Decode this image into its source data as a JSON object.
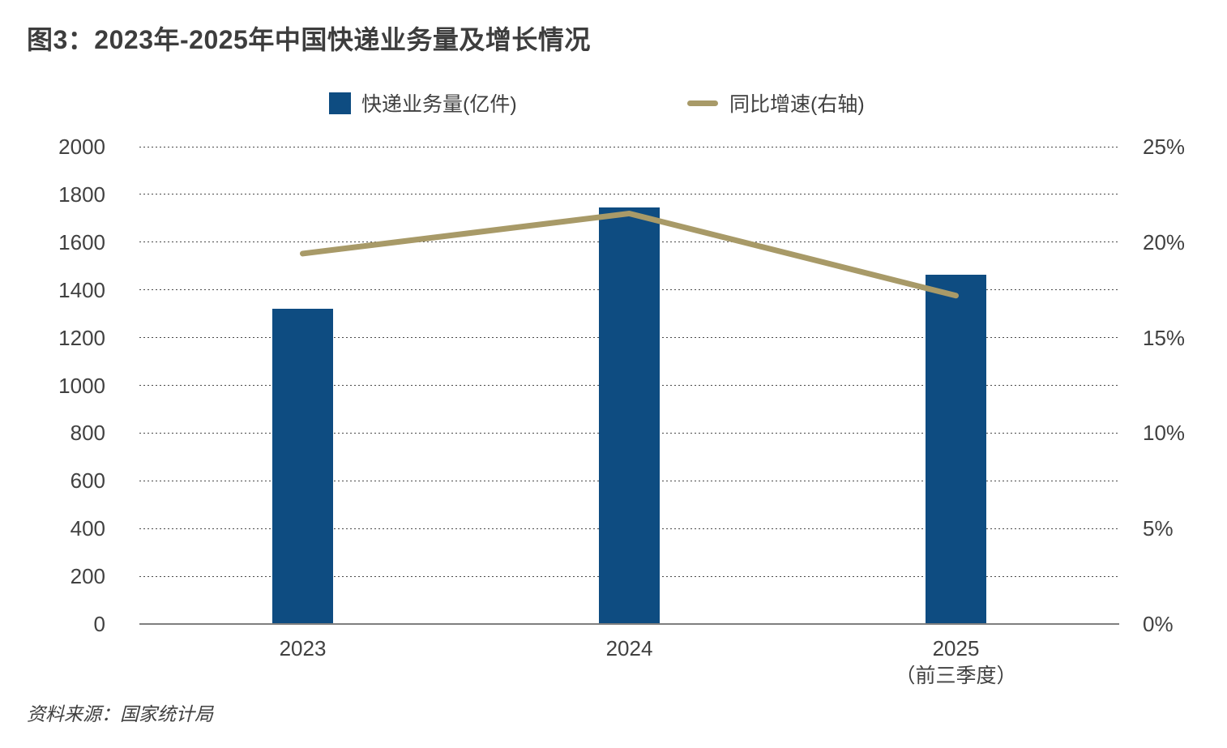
{
  "page": {
    "title": "图3：2023年-2025年中国快递业务量及增长情况",
    "source": "资料来源：国家统计局"
  },
  "legend": {
    "bar_label": "快递业务量(亿件)",
    "line_label": "同比增速(右轴)"
  },
  "colors": {
    "bar": "#0e4c81",
    "line": "#a89a68",
    "title_text": "#3d3d3d",
    "axis_text": "#414141",
    "axis_line": "#7f7f7f",
    "gridline": "#4a4a4a"
  },
  "chart_data": {
    "type": "bar",
    "title": "2023年-2025年中国快递业务量及增长情况",
    "categories": [
      "2023",
      "2024",
      "2025（前三季度）"
    ],
    "x_tick_lines": [
      [
        "2023"
      ],
      [
        "2024"
      ],
      [
        "2025",
        "（前三季度）"
      ]
    ],
    "series": [
      {
        "name": "快递业务量(亿件)",
        "type": "bar",
        "axis": "left",
        "color": "#0e4c81",
        "values": [
          1321,
          1745,
          1465
        ]
      },
      {
        "name": "同比增速(右轴)",
        "type": "line",
        "axis": "right",
        "color": "#a89a68",
        "values": [
          19.4,
          21.5,
          17.2
        ]
      }
    ],
    "left_axis": {
      "min": 0,
      "max": 2000,
      "step": 200,
      "ticks": [
        0,
        200,
        400,
        600,
        800,
        1000,
        1200,
        1400,
        1600,
        1800,
        2000
      ]
    },
    "right_axis": {
      "min": 0,
      "max": 25,
      "step": 5,
      "ticks": [
        0,
        5,
        10,
        15,
        20,
        25
      ],
      "suffix": "%"
    },
    "grid": "horizontal-dotted",
    "legend_position": "top"
  }
}
